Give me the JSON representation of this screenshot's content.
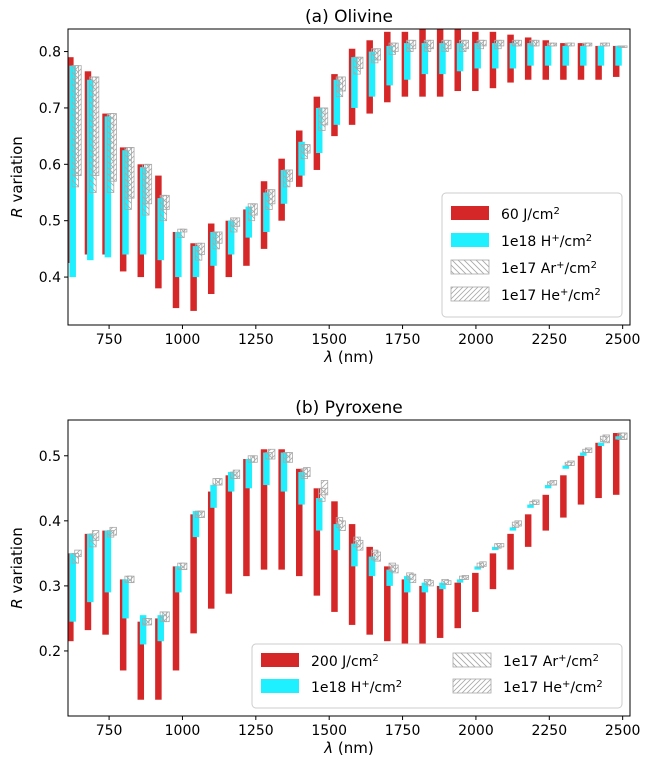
{
  "chart_data": [
    {
      "type": "bar",
      "title": "(a) Olivine",
      "xlabel_symbol": "λ",
      "xlabel_unit": "(nm)",
      "ylabel_symbol": "R",
      "ylabel_text": "variation",
      "xlim": [
        610,
        2525
      ],
      "ylim": [
        0.315,
        0.84
      ],
      "xticks": [
        750,
        1000,
        1250,
        1500,
        1750,
        2000,
        2250,
        2500
      ],
      "yticks": [
        0.4,
        0.5,
        0.6,
        0.7,
        0.8
      ],
      "legend_position": "lower right",
      "legend_columns": 1,
      "colors": {
        "laser": "#d62728",
        "hydrogen": "#1ff0ff",
        "hatch": "#a8a8a8"
      },
      "x": [
        630,
        690,
        750,
        810,
        870,
        930,
        990,
        1050,
        1110,
        1170,
        1230,
        1290,
        1350,
        1410,
        1470,
        1530,
        1590,
        1650,
        1710,
        1770,
        1830,
        1890,
        1950,
        2010,
        2070,
        2130,
        2190,
        2250,
        2310,
        2370,
        2430,
        2490
      ],
      "series": [
        {
          "name": "60 J/cm",
          "name_sup": "2",
          "style": "solid-red",
          "offset_nm": -12,
          "low": [
            0.425,
            0.44,
            0.44,
            0.41,
            0.4,
            0.38,
            0.345,
            0.34,
            0.37,
            0.4,
            0.42,
            0.45,
            0.5,
            0.56,
            0.59,
            0.65,
            0.67,
            0.69,
            0.71,
            0.72,
            0.72,
            0.72,
            0.73,
            0.73,
            0.735,
            0.745,
            0.75,
            0.75,
            0.75,
            0.75,
            0.75,
            0.755
          ],
          "high": [
            0.79,
            0.765,
            0.69,
            0.63,
            0.6,
            0.58,
            0.48,
            0.46,
            0.495,
            0.5,
            0.52,
            0.57,
            0.61,
            0.66,
            0.72,
            0.76,
            0.805,
            0.82,
            0.835,
            0.835,
            0.84,
            0.84,
            0.84,
            0.835,
            0.835,
            0.83,
            0.825,
            0.82,
            0.815,
            0.815,
            0.81,
            0.81
          ]
        },
        {
          "name": "1e18 H",
          "name_sup": "+",
          "name_tail": "/cm",
          "name_sup2": "2",
          "style": "solid-cyan",
          "offset_nm": -4,
          "low": [
            0.4,
            0.43,
            0.435,
            0.44,
            0.44,
            0.43,
            0.4,
            0.4,
            0.42,
            0.44,
            0.47,
            0.48,
            0.53,
            0.58,
            0.62,
            0.67,
            0.7,
            0.72,
            0.74,
            0.75,
            0.76,
            0.76,
            0.765,
            0.77,
            0.77,
            0.77,
            0.775,
            0.775,
            0.775,
            0.775,
            0.775,
            0.775
          ],
          "high": [
            0.775,
            0.75,
            0.685,
            0.625,
            0.595,
            0.54,
            0.48,
            0.455,
            0.48,
            0.5,
            0.525,
            0.55,
            0.59,
            0.64,
            0.7,
            0.75,
            0.79,
            0.8,
            0.81,
            0.815,
            0.815,
            0.815,
            0.815,
            0.815,
            0.815,
            0.815,
            0.815,
            0.81,
            0.81,
            0.81,
            0.81,
            0.81
          ]
        },
        {
          "name": "1e17 Ar",
          "name_sup": "+",
          "name_tail": "/cm",
          "name_sup2": "2",
          "style": "hatch-back",
          "offset_nm": 5,
          "low": [
            0.56,
            0.55,
            0.55,
            0.52,
            0.51,
            0.5,
            0.47,
            0.43,
            0.45,
            0.48,
            0.5,
            0.52,
            0.56,
            0.61,
            0.66,
            0.72,
            0.76,
            0.78,
            0.795,
            0.8,
            0.8,
            0.8,
            0.8,
            0.805,
            0.805,
            0.81,
            0.81,
            0.81,
            0.81,
            0.81,
            0.81,
            0.81
          ],
          "high": [
            0.775,
            0.755,
            0.69,
            0.63,
            0.6,
            0.545,
            0.485,
            0.46,
            0.48,
            0.505,
            0.53,
            0.555,
            0.59,
            0.635,
            0.7,
            0.755,
            0.79,
            0.805,
            0.815,
            0.82,
            0.82,
            0.82,
            0.82,
            0.82,
            0.82,
            0.82,
            0.82,
            0.815,
            0.815,
            0.815,
            0.815,
            0.81
          ]
        },
        {
          "name": "1e17 He",
          "name_sup": "+",
          "name_tail": "/cm",
          "name_sup2": "2",
          "style": "hatch-fwd",
          "offset_nm": 14,
          "low": [
            0.58,
            0.58,
            0.57,
            0.54,
            0.53,
            0.52,
            0.48,
            0.44,
            0.46,
            0.49,
            0.51,
            0.53,
            0.57,
            0.62,
            0.67,
            0.73,
            0.77,
            0.785,
            0.8,
            0.805,
            0.805,
            0.805,
            0.805,
            0.81,
            0.81,
            0.81,
            0.81,
            0.81,
            0.81,
            0.81,
            0.81,
            0.81
          ],
          "high": [
            0.775,
            0.755,
            0.69,
            0.63,
            0.6,
            0.545,
            0.485,
            0.46,
            0.48,
            0.505,
            0.53,
            0.555,
            0.59,
            0.635,
            0.7,
            0.755,
            0.79,
            0.805,
            0.815,
            0.82,
            0.82,
            0.82,
            0.82,
            0.82,
            0.82,
            0.82,
            0.82,
            0.815,
            0.815,
            0.815,
            0.815,
            0.81
          ]
        }
      ]
    },
    {
      "type": "bar",
      "title": "(b) Pyroxene",
      "xlabel_symbol": "λ",
      "xlabel_unit": "(nm)",
      "ylabel_symbol": "R",
      "ylabel_text": "variation",
      "xlim": [
        610,
        2525
      ],
      "ylim": [
        0.1,
        0.555
      ],
      "xticks": [
        750,
        1000,
        1250,
        1500,
        1750,
        2000,
        2250,
        2500
      ],
      "yticks": [
        0.2,
        0.3,
        0.4,
        0.5
      ],
      "legend_position": "lower right",
      "legend_columns": 2,
      "colors": {
        "laser": "#d62728",
        "hydrogen": "#1ff0ff",
        "hatch": "#a8a8a8"
      },
      "x": [
        630,
        690,
        750,
        810,
        870,
        930,
        990,
        1050,
        1110,
        1170,
        1230,
        1290,
        1350,
        1410,
        1470,
        1530,
        1590,
        1650,
        1710,
        1770,
        1830,
        1890,
        1950,
        2010,
        2070,
        2130,
        2190,
        2250,
        2310,
        2370,
        2430,
        2490
      ],
      "series": [
        {
          "name": "200 J/cm",
          "name_sup": "2",
          "style": "solid-red",
          "offset_nm": -12,
          "low": [
            0.215,
            0.232,
            0.225,
            0.17,
            0.125,
            0.125,
            0.17,
            0.227,
            0.265,
            0.288,
            0.315,
            0.325,
            0.325,
            0.315,
            0.285,
            0.26,
            0.24,
            0.225,
            0.215,
            0.21,
            0.21,
            0.22,
            0.235,
            0.26,
            0.295,
            0.325,
            0.36,
            0.385,
            0.405,
            0.425,
            0.435,
            0.44
          ],
          "high": [
            0.35,
            0.38,
            0.385,
            0.31,
            0.245,
            0.25,
            0.33,
            0.41,
            0.445,
            0.47,
            0.495,
            0.51,
            0.51,
            0.48,
            0.45,
            0.43,
            0.395,
            0.36,
            0.33,
            0.31,
            0.3,
            0.3,
            0.305,
            0.32,
            0.35,
            0.38,
            0.41,
            0.44,
            0.47,
            0.5,
            0.52,
            0.535
          ]
        },
        {
          "name": "1e18 H",
          "name_sup": "+",
          "name_tail": "/cm",
          "name_sup2": "2",
          "style": "solid-cyan",
          "offset_nm": -4,
          "low": [
            0.245,
            0.275,
            0.29,
            0.25,
            0.21,
            0.215,
            0.29,
            0.375,
            0.42,
            0.445,
            0.45,
            0.455,
            0.445,
            0.425,
            0.385,
            0.355,
            0.33,
            0.315,
            0.3,
            0.29,
            0.29,
            0.295,
            0.305,
            0.325,
            0.355,
            0.385,
            0.42,
            0.45,
            0.48,
            0.5,
            0.515,
            0.525
          ],
          "high": [
            0.35,
            0.38,
            0.385,
            0.31,
            0.255,
            0.255,
            0.33,
            0.415,
            0.455,
            0.475,
            0.495,
            0.505,
            0.505,
            0.475,
            0.435,
            0.395,
            0.365,
            0.345,
            0.325,
            0.315,
            0.305,
            0.305,
            0.31,
            0.33,
            0.36,
            0.39,
            0.425,
            0.455,
            0.485,
            0.505,
            0.52,
            0.53
          ]
        },
        {
          "name": "1e17 Ar",
          "name_sup": "+",
          "name_tail": "/cm",
          "name_sup2": "2",
          "style": "hatch-back",
          "offset_nm": 5,
          "low": [
            0.335,
            0.36,
            0.375,
            0.305,
            0.24,
            0.245,
            0.325,
            0.405,
            0.455,
            0.465,
            0.49,
            0.495,
            0.49,
            0.465,
            0.43,
            0.39,
            0.36,
            0.34,
            0.322,
            0.31,
            0.302,
            0.302,
            0.31,
            0.328,
            0.358,
            0.39,
            0.425,
            0.455,
            0.485,
            0.505,
            0.522,
            0.525
          ],
          "high": [
            0.35,
            0.38,
            0.385,
            0.315,
            0.25,
            0.26,
            0.335,
            0.415,
            0.465,
            0.475,
            0.5,
            0.505,
            0.505,
            0.48,
            0.45,
            0.405,
            0.375,
            0.355,
            0.335,
            0.32,
            0.31,
            0.31,
            0.315,
            0.335,
            0.365,
            0.398,
            0.43,
            0.46,
            0.49,
            0.51,
            0.53,
            0.535
          ]
        },
        {
          "name": "1e17 He",
          "name_sup": "+",
          "name_tail": "/cm",
          "name_sup2": "2",
          "style": "hatch-fwd",
          "offset_nm": 14,
          "low": [
            0.345,
            0.37,
            0.378,
            0.305,
            0.24,
            0.245,
            0.325,
            0.405,
            0.455,
            0.465,
            0.49,
            0.495,
            0.49,
            0.468,
            0.44,
            0.385,
            0.355,
            0.338,
            0.32,
            0.305,
            0.3,
            0.302,
            0.31,
            0.33,
            0.36,
            0.392,
            0.425,
            0.455,
            0.485,
            0.505,
            0.52,
            0.525
          ],
          "high": [
            0.355,
            0.385,
            0.39,
            0.315,
            0.25,
            0.26,
            0.335,
            0.415,
            0.465,
            0.478,
            0.5,
            0.51,
            0.505,
            0.482,
            0.462,
            0.4,
            0.37,
            0.352,
            0.332,
            0.318,
            0.308,
            0.308,
            0.316,
            0.337,
            0.365,
            0.4,
            0.432,
            0.462,
            0.492,
            0.512,
            0.532,
            0.535
          ]
        }
      ]
    }
  ]
}
